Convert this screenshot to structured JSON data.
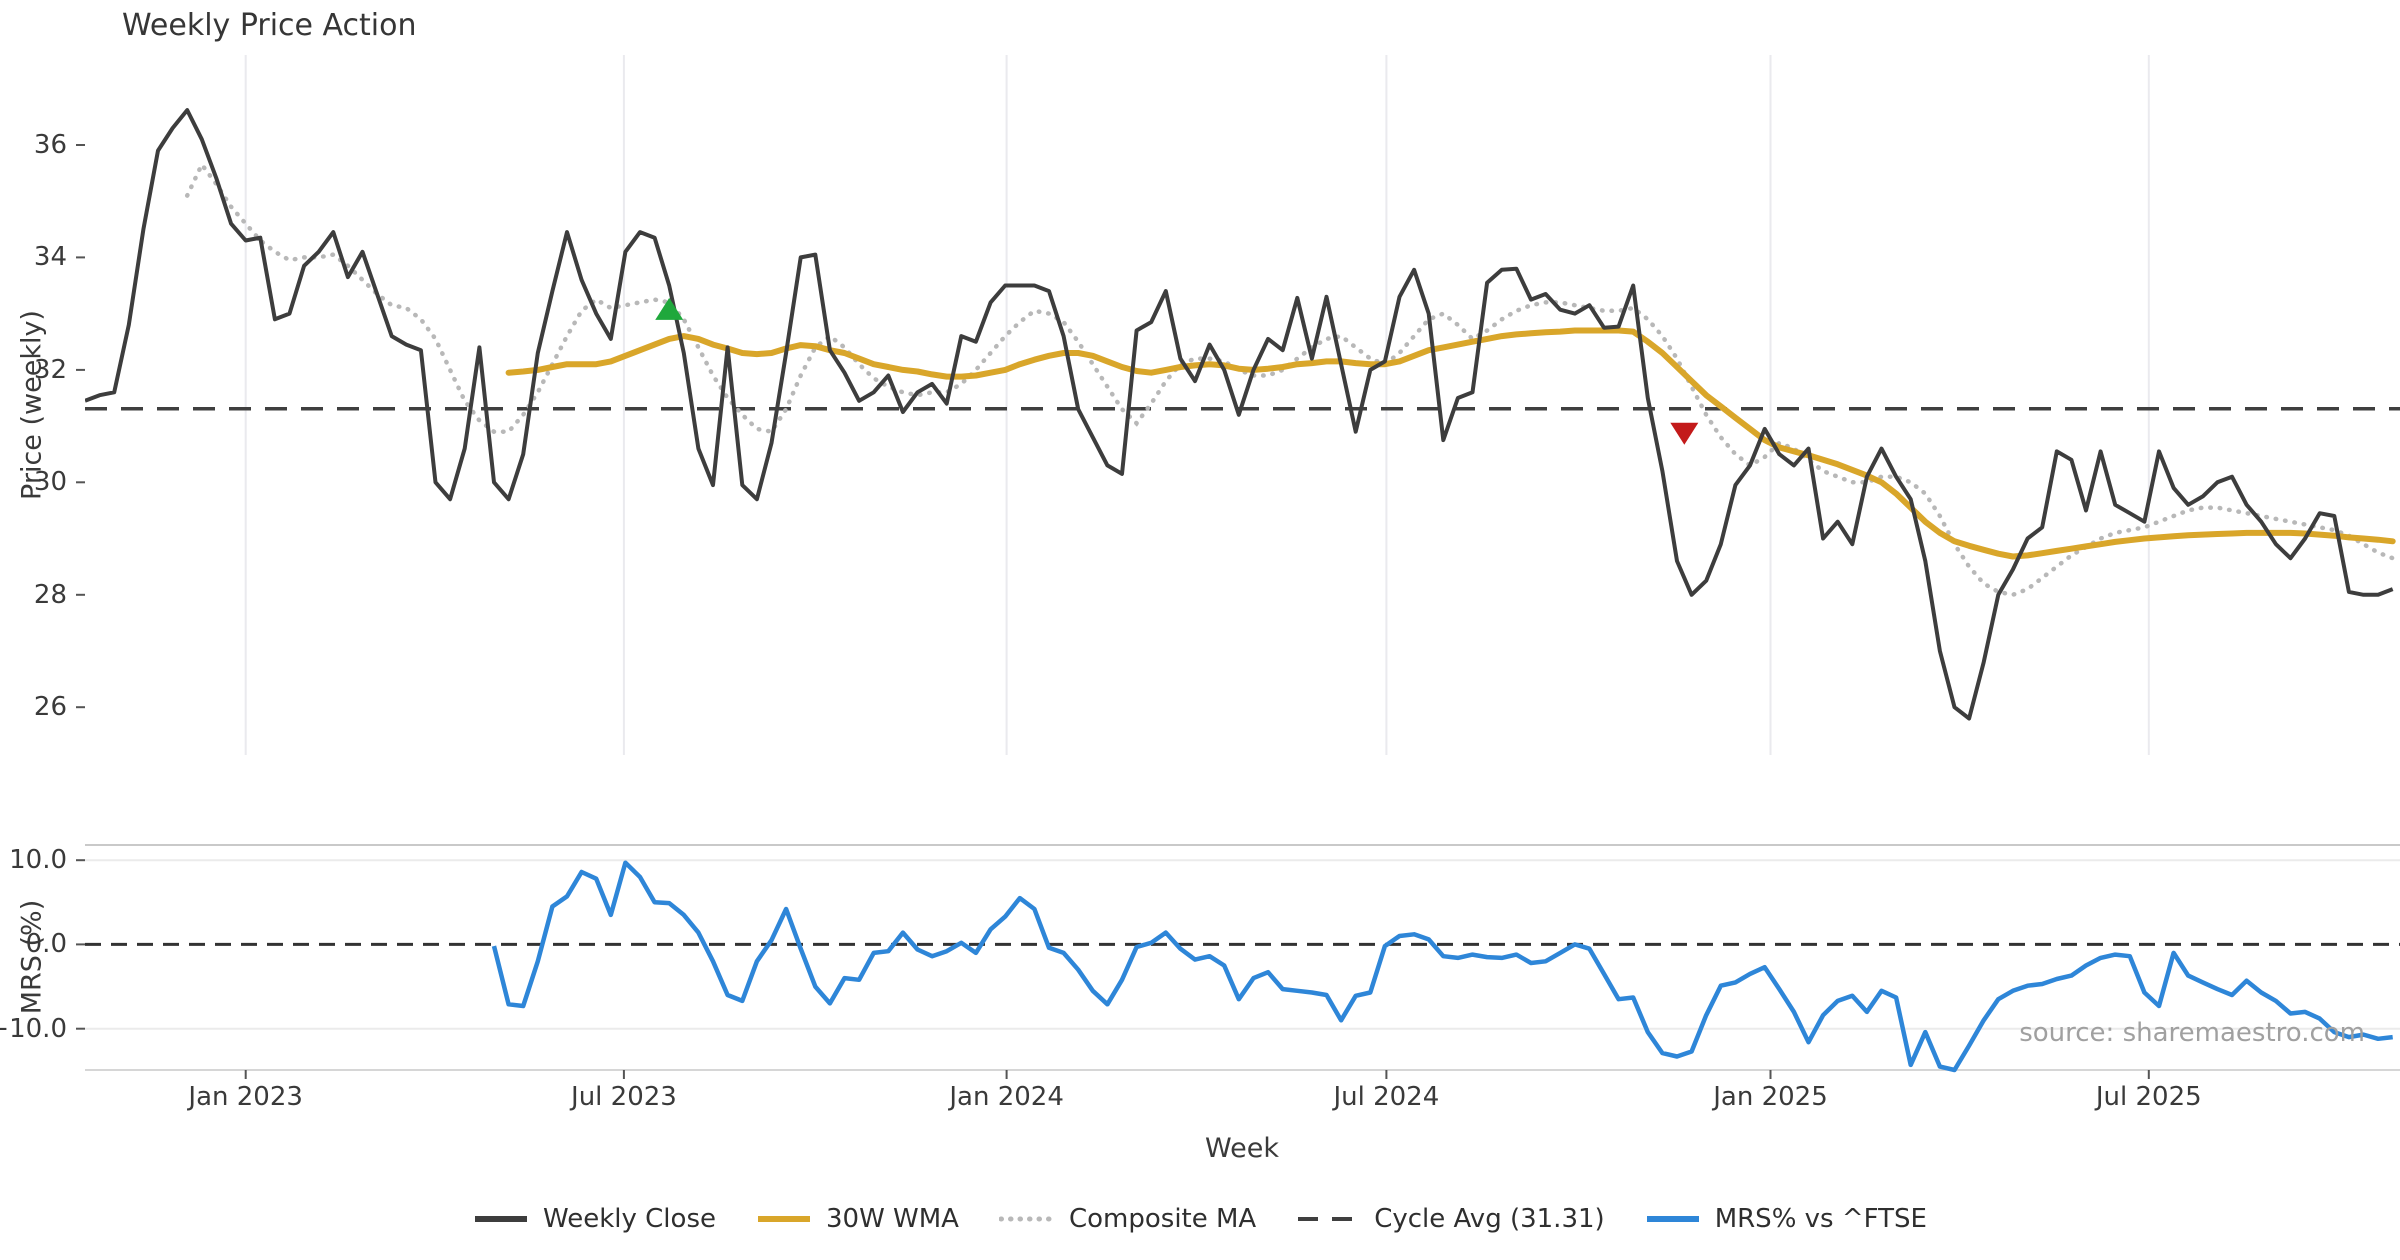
{
  "title": "Weekly Price Action",
  "source_note": "source: sharemaestro.com",
  "legend": {
    "items": [
      {
        "label": "Weekly Close",
        "color": "#3D3D3D",
        "style": "solid"
      },
      {
        "label": "30W WMA",
        "color": "#D9A62A",
        "style": "solid"
      },
      {
        "label": "Composite MA",
        "color": "#B8B8B8",
        "style": "dotted"
      },
      {
        "label": "Cycle Avg (31.31)",
        "color": "#3F3F3F",
        "style": "dashed"
      },
      {
        "label": "MRS% vs ^FTSE",
        "color": "#2E86D8",
        "style": "solid"
      }
    ]
  },
  "colors": {
    "background": "#FFFFFF",
    "grid_vertical": "#EAEAEE",
    "grid_horizontal": "#EBEBEB",
    "spine": "#C9C9C9",
    "tick": "#555555",
    "text": "#3A3A3A",
    "muted_text": "#A0A0A0",
    "buy_marker": "#1FA83C",
    "sell_marker": "#C31A1A"
  },
  "chart_data": {
    "type": "line",
    "x_axis": {
      "label": "Week",
      "unit": "weeks",
      "domain_weeks": [
        0,
        158.5
      ],
      "ticks": [
        {
          "label": "Jan 2023",
          "week": 11.0
        },
        {
          "label": "Jul 2023",
          "week": 36.9
        },
        {
          "label": "Jan 2024",
          "week": 63.1
        },
        {
          "label": "Jul 2024",
          "week": 89.1
        },
        {
          "label": "Jan 2025",
          "week": 115.4
        },
        {
          "label": "Jul 2025",
          "week": 141.3
        }
      ]
    },
    "panels": [
      {
        "id": "price",
        "ylabel": "Price (weekly)",
        "ylim": [
          25.15,
          37.6
        ],
        "yticks": [
          {
            "label": "26",
            "value": 26
          },
          {
            "label": "28",
            "value": 28
          },
          {
            "label": "30",
            "value": 30
          },
          {
            "label": "32",
            "value": 32
          },
          {
            "label": "34",
            "value": 34
          },
          {
            "label": "36",
            "value": 36
          }
        ],
        "gridlines": "vertical",
        "ref_line": {
          "name": "Cycle Avg",
          "value": 31.31,
          "style": "dashed",
          "color": "#3F3F3F"
        },
        "series": [
          {
            "name": "Weekly Close",
            "color": "#3D3D3D",
            "style": "solid",
            "width": 4,
            "start_week": 0,
            "values": [
              31.45,
              31.55,
              31.6,
              32.8,
              34.5,
              35.9,
              36.3,
              36.62,
              36.1,
              35.4,
              34.6,
              34.3,
              34.35,
              32.9,
              33.0,
              33.85,
              34.1,
              34.45,
              33.65,
              34.1,
              33.35,
              32.6,
              32.45,
              32.35,
              30.0,
              29.7,
              30.6,
              32.4,
              30.0,
              29.7,
              30.5,
              32.3,
              33.4,
              34.45,
              33.6,
              33.0,
              32.55,
              34.1,
              34.45,
              34.35,
              33.5,
              32.3,
              30.6,
              29.95,
              32.4,
              29.95,
              29.7,
              30.7,
              32.3,
              34.0,
              34.05,
              32.35,
              31.95,
              31.45,
              31.6,
              31.9,
              31.25,
              31.6,
              31.75,
              31.4,
              32.6,
              32.5,
              33.2,
              33.5,
              33.5,
              33.5,
              33.4,
              32.6,
              31.3,
              30.8,
              30.3,
              30.15,
              32.7,
              32.85,
              33.4,
              32.2,
              31.8,
              32.45,
              32.0,
              31.2,
              32.0,
              32.55,
              32.35,
              33.28,
              32.2,
              33.3,
              32.1,
              30.9,
              32.0,
              32.15,
              33.3,
              33.78,
              33.0,
              30.75,
              31.5,
              31.6,
              33.55,
              33.78,
              33.8,
              33.25,
              33.35,
              33.07,
              33.0,
              33.15,
              32.75,
              32.77,
              33.5,
              31.5,
              30.2,
              28.6,
              28.0,
              28.25,
              28.9,
              29.95,
              30.3,
              30.95,
              30.5,
              30.3,
              30.6,
              29.0,
              29.3,
              28.9,
              30.1,
              30.6,
              30.1,
              29.7,
              28.6,
              27.0,
              26.0,
              25.8,
              26.8,
              28.0,
              28.45,
              29.0,
              29.2,
              30.55,
              30.4,
              29.5,
              30.55,
              29.6,
              29.45,
              29.3,
              30.55,
              29.9,
              29.6,
              29.75,
              30.0,
              30.1,
              29.6,
              29.3,
              28.9,
              28.65,
              29.0,
              29.45,
              29.4,
              28.05,
              28.0,
              28.0,
              28.1
            ]
          },
          {
            "name": "30W WMA",
            "color": "#D9A62A",
            "style": "solid",
            "width": 6,
            "start_week": 29,
            "values": [
              31.95,
              31.97,
              32.0,
              32.05,
              32.1,
              32.1,
              32.1,
              32.15,
              32.25,
              32.35,
              32.45,
              32.55,
              32.6,
              32.55,
              32.45,
              32.38,
              32.3,
              32.28,
              32.3,
              32.38,
              32.44,
              32.42,
              32.35,
              32.3,
              32.2,
              32.1,
              32.05,
              32.0,
              31.97,
              31.92,
              31.88,
              31.88,
              31.9,
              31.95,
              32.0,
              32.1,
              32.18,
              32.25,
              32.3,
              32.3,
              32.25,
              32.15,
              32.05,
              31.98,
              31.95,
              32.0,
              32.05,
              32.08,
              32.1,
              32.08,
              32.02,
              32.0,
              32.02,
              32.05,
              32.1,
              32.12,
              32.15,
              32.15,
              32.12,
              32.1,
              32.1,
              32.15,
              32.25,
              32.35,
              32.4,
              32.45,
              32.5,
              32.55,
              32.6,
              32.63,
              32.65,
              32.67,
              32.68,
              32.7,
              32.7,
              32.7,
              32.7,
              32.68,
              32.5,
              32.3,
              32.05,
              31.8,
              31.55,
              31.35,
              31.15,
              30.95,
              30.75,
              30.62,
              30.55,
              30.48,
              30.4,
              30.32,
              30.22,
              30.12,
              30.0,
              29.8,
              29.55,
              29.3,
              29.1,
              28.95,
              28.87,
              28.8,
              28.73,
              28.68,
              28.7,
              28.74,
              28.78,
              28.82,
              28.86,
              28.9,
              28.94,
              28.97,
              29.0,
              29.02,
              29.04,
              29.06,
              29.07,
              29.08,
              29.09,
              29.1,
              29.1,
              29.1,
              29.1,
              29.09,
              29.07,
              29.05,
              29.02,
              29.0,
              28.98,
              28.95
            ]
          },
          {
            "name": "Composite MA",
            "color": "#B8B8B8",
            "style": "dotted",
            "width": 4.5,
            "start_week": 7,
            "values": [
              35.1,
              35.65,
              35.3,
              34.9,
              34.6,
              34.3,
              34.1,
              33.95,
              34.0,
              34.0,
              34.05,
              33.85,
              33.6,
              33.35,
              33.15,
              33.1,
              32.9,
              32.55,
              32.0,
              31.45,
              31.1,
              30.9,
              30.9,
              31.2,
              31.6,
              32.1,
              32.6,
              33.05,
              33.25,
              33.1,
              33.15,
              33.2,
              33.25,
              33.2,
              32.9,
              32.4,
              31.9,
              31.5,
              31.2,
              30.95,
              30.9,
              31.3,
              31.9,
              32.4,
              32.6,
              32.4,
              32.1,
              31.85,
              31.7,
              31.6,
              31.55,
              31.6,
              31.6,
              31.75,
              32.0,
              32.3,
              32.6,
              32.85,
              33.05,
              33.0,
              32.85,
              32.5,
              32.1,
              31.7,
              31.3,
              31.05,
              31.4,
              31.8,
              32.1,
              32.2,
              32.2,
              32.15,
              32.0,
              31.9,
              31.9,
              32.0,
              32.2,
              32.4,
              32.55,
              32.6,
              32.4,
              32.2,
              32.1,
              32.3,
              32.6,
              32.9,
              33.0,
              32.8,
              32.55,
              32.7,
              32.9,
              33.05,
              33.15,
              33.2,
              33.2,
              33.15,
              33.1,
              33.05,
              33.05,
              33.1,
              32.9,
              32.6,
              32.2,
              31.7,
              31.2,
              30.8,
              30.5,
              30.3,
              30.45,
              30.7,
              30.6,
              30.4,
              30.2,
              30.1,
              30.0,
              30.0,
              30.1,
              30.1,
              30.0,
              29.8,
              29.4,
              28.9,
              28.5,
              28.2,
              28.05,
              28.0,
              28.1,
              28.3,
              28.5,
              28.7,
              28.85,
              29.0,
              29.1,
              29.15,
              29.2,
              29.3,
              29.4,
              29.5,
              29.55,
              29.55,
              29.5,
              29.45,
              29.4,
              29.35,
              29.3,
              29.25,
              29.2,
              29.15,
              29.05,
              28.9,
              28.75,
              28.65
            ]
          }
        ],
        "markers": [
          {
            "type": "buy",
            "shape": "triangle-up",
            "color": "#1FA83C",
            "week": 40.0,
            "price": 33.05
          },
          {
            "type": "sell",
            "shape": "triangle-down",
            "color": "#C31A1A",
            "week": 109.5,
            "price": 30.9
          }
        ]
      },
      {
        "id": "mrs",
        "ylabel": "MRS (%)",
        "ylim": [
          -14.9,
          11.8
        ],
        "yticks": [
          {
            "label": "10.0",
            "value": 10
          },
          {
            "label": "0.0",
            "value": 0
          },
          {
            "label": "−10.0",
            "value": -10
          }
        ],
        "gridlines": "horizontal",
        "ref_line": {
          "name": "Zero",
          "value": 0,
          "style": "dashed",
          "color": "#333333"
        },
        "series": [
          {
            "name": "MRS% vs ^FTSE",
            "color": "#2E86D8",
            "style": "solid",
            "width": 4.5,
            "start_week": 28,
            "values": [
              -0.2,
              -7.1,
              -7.3,
              -2.0,
              4.5,
              5.7,
              8.6,
              7.8,
              3.5,
              9.7,
              8.0,
              5.0,
              4.9,
              3.5,
              1.4,
              -2.0,
              -6.0,
              -6.7,
              -2.0,
              0.5,
              4.2,
              -0.5,
              -5.0,
              -7.0,
              -4.0,
              -4.2,
              -1.0,
              -0.8,
              1.4,
              -0.6,
              -1.4,
              -0.8,
              0.2,
              -1.0,
              1.8,
              3.3,
              5.5,
              4.2,
              -0.4,
              -1.0,
              -3.0,
              -5.5,
              -7.1,
              -4.2,
              -0.3,
              0.2,
              1.4,
              -0.5,
              -1.8,
              -1.4,
              -2.5,
              -6.5,
              -4.0,
              -3.3,
              -5.3,
              -5.5,
              -5.7,
              -6.0,
              -9.0,
              -6.1,
              -5.7,
              -0.2,
              1.0,
              1.2,
              0.6,
              -1.4,
              -1.6,
              -1.2,
              -1.5,
              -1.6,
              -1.2,
              -2.2,
              -2.0,
              -1.0,
              0.0,
              -0.5,
              -3.5,
              -6.5,
              -6.3,
              -10.4,
              -12.9,
              -13.3,
              -12.7,
              -8.4,
              -4.9,
              -4.5,
              -3.5,
              -2.7,
              -5.3,
              -8.0,
              -11.6,
              -8.4,
              -6.7,
              -6.1,
              -8.0,
              -5.5,
              -6.3,
              -14.3,
              -10.4,
              -14.5,
              -14.9,
              -12.0,
              -9.0,
              -6.5,
              -5.5,
              -4.9,
              -4.7,
              -4.1,
              -3.7,
              -2.5,
              -1.6,
              -1.2,
              -1.4,
              -5.7,
              -7.3,
              -1.0,
              -3.7,
              -4.5,
              -5.3,
              -6.0,
              -4.3,
              -5.7,
              -6.7,
              -8.2,
              -8.0,
              -8.8,
              -10.4,
              -11.0,
              -10.7,
              -11.2,
              -11.0
            ]
          }
        ]
      }
    ]
  }
}
